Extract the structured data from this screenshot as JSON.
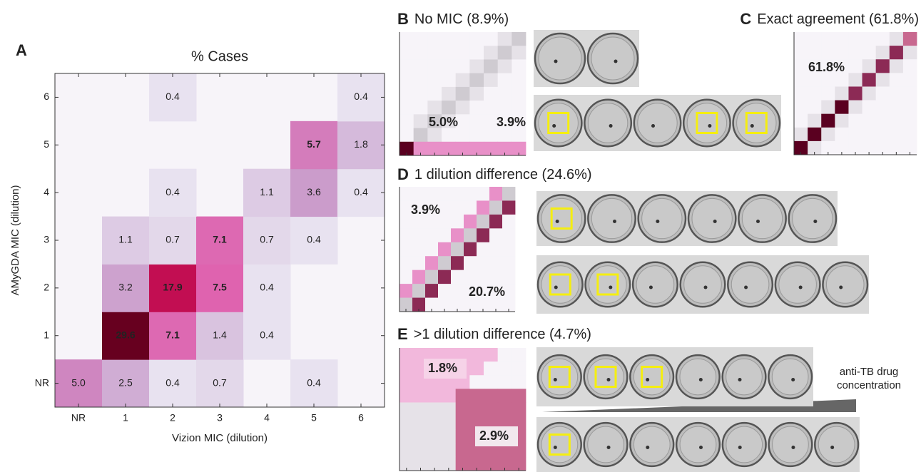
{
  "chart_data": {
    "type": "heatmap",
    "panel_label": "A",
    "title": "% Cases",
    "x_label": "Vizion MIC (dilution)",
    "y_label": "AMyGDA MIC (dilution)",
    "x_categories": [
      "NR",
      "1",
      "2",
      "3",
      "4",
      "5",
      "6"
    ],
    "y_categories": [
      "NR",
      "1",
      "2",
      "3",
      "4",
      "5",
      "6"
    ],
    "values": [
      [
        5.0,
        2.5,
        0.4,
        0.7,
        null,
        0.4,
        null
      ],
      [
        null,
        29.6,
        7.1,
        1.4,
        0.4,
        null,
        null
      ],
      [
        null,
        3.2,
        17.9,
        7.5,
        0.4,
        null,
        null
      ],
      [
        null,
        1.1,
        0.7,
        7.1,
        0.7,
        0.4,
        null
      ],
      [
        null,
        null,
        0.4,
        null,
        1.1,
        3.6,
        0.4
      ],
      [
        null,
        null,
        null,
        null,
        null,
        5.7,
        1.8
      ],
      [
        null,
        null,
        0.4,
        null,
        null,
        null,
        0.4
      ]
    ],
    "value_labels": [
      [
        "5.0",
        "2.5",
        "0.4",
        "0.7",
        null,
        "0.4",
        null
      ],
      [
        null,
        "29.6",
        "7.1",
        "1.4",
        "0.4",
        null,
        null
      ],
      [
        null,
        "3.2",
        "17.9",
        "7.5",
        "0.4",
        null,
        null
      ],
      [
        null,
        "1.1",
        "0.7",
        "7.1",
        "0.7",
        "0.4",
        null
      ],
      [
        null,
        null,
        "0.4",
        null,
        "1.1",
        "3.6",
        "0.4"
      ],
      [
        null,
        null,
        null,
        null,
        null,
        "5.7",
        "1.8"
      ],
      [
        null,
        null,
        "0.4",
        null,
        null,
        null,
        "0.4"
      ]
    ]
  },
  "panels": [
    {
      "letter": "B",
      "title": "No MIC (8.9%)",
      "annotations": [
        "5.0%",
        "3.9%"
      ]
    },
    {
      "letter": "C",
      "title": "Exact agreement (61.8%)",
      "annotations": [
        "61.8%"
      ]
    },
    {
      "letter": "D",
      "title": "1 dilution difference (24.6%)",
      "annotations": [
        "3.9%",
        "20.7%"
      ]
    },
    {
      "letter": "E",
      "title": ">1 dilution difference (4.7%)",
      "annotations": [
        "1.8%",
        "2.9%"
      ]
    }
  ],
  "drug_note": [
    "anti-TB drug",
    "concentration"
  ]
}
